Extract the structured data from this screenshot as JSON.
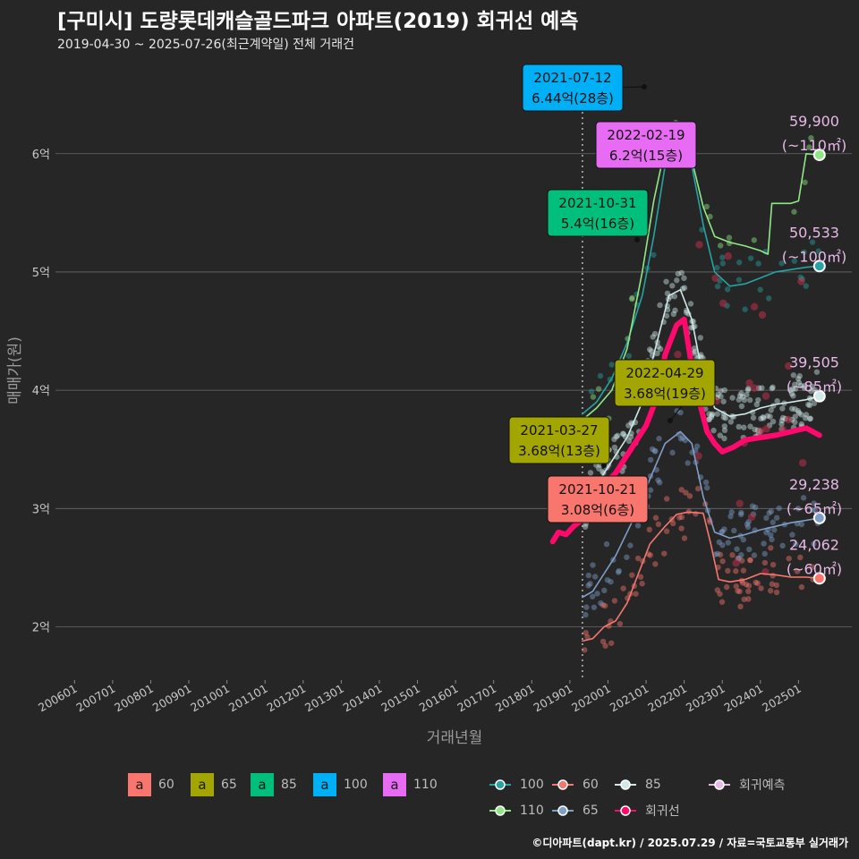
{
  "header": {
    "title": "[구미시] 도량롯데캐슬골드파크 아파트(2019) 회귀선 예측",
    "subtitle": "2019-04-30 ~ 2025-07-26(최근계약일) 전체 거래건"
  },
  "footer": {
    "credit": "©디아파트(dapt.kr) / 2025.07.29 / 자료=국토교통부 실거래가"
  },
  "chart_data": {
    "type": "line",
    "xlabel": "거래년월",
    "ylabel": "매매가(원)",
    "x_range": [
      2005.5,
      2026.4
    ],
    "y_range": [
      1.55,
      6.8
    ],
    "x_ticks": [
      {
        "label": "200601",
        "value": 2006.0
      },
      {
        "label": "200701",
        "value": 2007.0
      },
      {
        "label": "200801",
        "value": 2008.0
      },
      {
        "label": "200901",
        "value": 2009.0
      },
      {
        "label": "201001",
        "value": 2010.0
      },
      {
        "label": "201101",
        "value": 2011.0
      },
      {
        "label": "201201",
        "value": 2012.0
      },
      {
        "label": "201301",
        "value": 2013.0
      },
      {
        "label": "201401",
        "value": 2014.0
      },
      {
        "label": "201501",
        "value": 2015.0
      },
      {
        "label": "201601",
        "value": 2016.0
      },
      {
        "label": "201701",
        "value": 2017.0
      },
      {
        "label": "201801",
        "value": 2018.0
      },
      {
        "label": "201901",
        "value": 2019.0
      },
      {
        "label": "202001",
        "value": 2020.0
      },
      {
        "label": "202101",
        "value": 2021.0
      },
      {
        "label": "202201",
        "value": 2022.0
      },
      {
        "label": "202301",
        "value": 2023.0
      },
      {
        "label": "202401",
        "value": 2024.0
      },
      {
        "label": "202501",
        "value": 2025.0
      }
    ],
    "y_ticks": [
      {
        "label": "2억",
        "value": 2
      },
      {
        "label": "3억",
        "value": 3
      },
      {
        "label": "4억",
        "value": 4
      },
      {
        "label": "5억",
        "value": 5
      },
      {
        "label": "6억",
        "value": 6
      }
    ],
    "start_line": 2019.33,
    "series": [
      {
        "name": "60",
        "color": "#f8766d",
        "points": [
          [
            2019.33,
            1.88
          ],
          [
            2019.6,
            1.9
          ],
          [
            2019.9,
            2.0
          ],
          [
            2020.2,
            2.05
          ],
          [
            2020.5,
            2.2
          ],
          [
            2020.8,
            2.45
          ],
          [
            2021.1,
            2.7
          ],
          [
            2021.5,
            2.85
          ],
          [
            2021.8,
            2.95
          ],
          [
            2022.1,
            2.97
          ],
          [
            2022.5,
            2.96
          ],
          [
            2022.7,
            2.7
          ],
          [
            2022.9,
            2.4
          ],
          [
            2023.2,
            2.38
          ],
          [
            2023.6,
            2.4
          ],
          [
            2024.0,
            2.45
          ],
          [
            2024.4,
            2.44
          ],
          [
            2024.8,
            2.42
          ],
          [
            2025.2,
            2.42
          ],
          [
            2025.55,
            2.41
          ]
        ]
      },
      {
        "name": "65",
        "color": "#7f9fc9",
        "points": [
          [
            2019.33,
            2.25
          ],
          [
            2019.6,
            2.3
          ],
          [
            2019.9,
            2.45
          ],
          [
            2020.2,
            2.6
          ],
          [
            2020.5,
            2.8
          ],
          [
            2020.8,
            3.0
          ],
          [
            2021.1,
            3.25
          ],
          [
            2021.5,
            3.55
          ],
          [
            2021.9,
            3.65
          ],
          [
            2022.2,
            3.55
          ],
          [
            2022.5,
            3.1
          ],
          [
            2022.8,
            2.8
          ],
          [
            2023.2,
            2.75
          ],
          [
            2023.6,
            2.78
          ],
          [
            2024.0,
            2.82
          ],
          [
            2024.4,
            2.85
          ],
          [
            2024.8,
            2.88
          ],
          [
            2025.2,
            2.9
          ],
          [
            2025.55,
            2.92
          ]
        ]
      },
      {
        "name": "85",
        "color": "#cfe8e8",
        "points": [
          [
            2019.33,
            3.0
          ],
          [
            2019.7,
            3.2
          ],
          [
            2020.1,
            3.4
          ],
          [
            2020.5,
            3.6
          ],
          [
            2020.9,
            3.9
          ],
          [
            2021.2,
            4.3
          ],
          [
            2021.6,
            4.8
          ],
          [
            2021.9,
            4.85
          ],
          [
            2022.2,
            4.6
          ],
          [
            2022.5,
            4.1
          ],
          [
            2022.8,
            3.85
          ],
          [
            2023.2,
            3.78
          ],
          [
            2023.6,
            3.8
          ],
          [
            2024.0,
            3.85
          ],
          [
            2024.4,
            3.88
          ],
          [
            2024.8,
            3.9
          ],
          [
            2025.2,
            3.92
          ],
          [
            2025.55,
            3.95
          ]
        ]
      },
      {
        "name": "100",
        "color": "#27a3a3",
        "points": [
          [
            2019.33,
            3.8
          ],
          [
            2019.7,
            3.9
          ],
          [
            2020.1,
            4.1
          ],
          [
            2020.5,
            4.4
          ],
          [
            2020.9,
            4.8
          ],
          [
            2021.2,
            5.3
          ],
          [
            2021.6,
            6.1
          ],
          [
            2021.9,
            6.2
          ],
          [
            2022.2,
            5.9
          ],
          [
            2022.5,
            5.4
          ],
          [
            2022.8,
            5.0
          ],
          [
            2023.2,
            4.88
          ],
          [
            2023.6,
            4.9
          ],
          [
            2024.0,
            4.95
          ],
          [
            2024.4,
            5.0
          ],
          [
            2024.8,
            5.02
          ],
          [
            2025.2,
            5.04
          ],
          [
            2025.55,
            5.05
          ]
        ]
      },
      {
        "name": "110",
        "color": "#90e885",
        "points": [
          [
            2019.33,
            3.75
          ],
          [
            2019.7,
            3.85
          ],
          [
            2020.1,
            4.0
          ],
          [
            2020.5,
            4.35
          ],
          [
            2020.9,
            5.0
          ],
          [
            2021.2,
            5.6
          ],
          [
            2021.6,
            6.2
          ],
          [
            2021.9,
            6.2
          ],
          [
            2022.2,
            5.95
          ],
          [
            2022.5,
            5.55
          ],
          [
            2022.8,
            5.3
          ],
          [
            2023.2,
            5.25
          ],
          [
            2023.6,
            5.22
          ],
          [
            2024.0,
            5.18
          ],
          [
            2024.2,
            5.15
          ],
          [
            2024.3,
            5.58
          ],
          [
            2024.8,
            5.58
          ],
          [
            2025.0,
            5.6
          ],
          [
            2025.2,
            6.0
          ],
          [
            2025.55,
            5.99
          ]
        ]
      },
      {
        "name": "회귀선",
        "color": "#ff0a6c",
        "points": [
          [
            2018.55,
            2.72
          ],
          [
            2018.7,
            2.8
          ],
          [
            2018.9,
            2.78
          ],
          [
            2019.1,
            2.85
          ],
          [
            2019.3,
            2.9
          ],
          [
            2019.6,
            3.05
          ],
          [
            2019.9,
            3.2
          ],
          [
            2020.2,
            3.3
          ],
          [
            2020.5,
            3.45
          ],
          [
            2020.8,
            3.6
          ],
          [
            2021.0,
            3.7
          ],
          [
            2021.3,
            3.95
          ],
          [
            2021.5,
            4.3
          ],
          [
            2021.8,
            4.55
          ],
          [
            2022.0,
            4.6
          ],
          [
            2022.2,
            4.2
          ],
          [
            2022.4,
            3.9
          ],
          [
            2022.6,
            3.65
          ],
          [
            2022.8,
            3.55
          ],
          [
            2023.0,
            3.48
          ],
          [
            2023.3,
            3.52
          ],
          [
            2023.6,
            3.58
          ],
          [
            2024.0,
            3.6
          ],
          [
            2024.4,
            3.62
          ],
          [
            2024.8,
            3.65
          ],
          [
            2025.2,
            3.68
          ],
          [
            2025.55,
            3.62
          ]
        ]
      }
    ],
    "end_labels": [
      {
        "series": "110",
        "value_label": "59,900",
        "area_label": "(~110㎡)",
        "x": 2025.55,
        "y": 5.99
      },
      {
        "series": "100",
        "value_label": "50,533",
        "area_label": "(~100㎡)",
        "x": 2025.55,
        "y": 5.05
      },
      {
        "series": "85",
        "value_label": "39,505",
        "area_label": "(~85㎡)",
        "x": 2025.55,
        "y": 3.95
      },
      {
        "series": "65",
        "value_label": "29,238",
        "area_label": "(~65㎡)",
        "x": 2025.55,
        "y": 2.92
      },
      {
        "series": "60",
        "value_label": "24,062",
        "area_label": "(~60㎡)",
        "x": 2025.55,
        "y": 2.41
      }
    ],
    "annotations": [
      {
        "series": "100",
        "date": "2021-07-12",
        "price": "6.44억(28층)",
        "x": 2021.53,
        "y": 6.44,
        "fill": "#00b0f6"
      },
      {
        "series": "110",
        "date": "2022-02-19",
        "price": "6.2억(15층)",
        "x": 2022.13,
        "y": 6.2,
        "fill": "#e76bf3"
      },
      {
        "series": "85",
        "date": "2021-10-31",
        "price": "5.4억(16층)",
        "x": 2021.83,
        "y": 5.4,
        "fill": "#00bf7d"
      },
      {
        "series": "65",
        "date": "2022-04-29",
        "price": "3.68억(19층)",
        "x": 2022.32,
        "y": 3.68,
        "fill": "#a3a500"
      },
      {
        "series": "65",
        "date": "2021-03-27",
        "price": "3.68억(13층)",
        "x": 2021.23,
        "y": 3.68,
        "fill": "#a3a500"
      },
      {
        "series": "60",
        "date": "2021-10-21",
        "price": "3.08억(6층)",
        "x": 2021.8,
        "y": 3.08,
        "fill": "#f8766d"
      }
    ],
    "legend_area": [
      {
        "key": "a",
        "label": "60",
        "color": "#f8766d"
      },
      {
        "key": "a",
        "label": "65",
        "color": "#a3a500"
      },
      {
        "key": "a",
        "label": "85",
        "color": "#00bf7d"
      },
      {
        "key": "a",
        "label": "100",
        "color": "#00b0f6"
      },
      {
        "key": "a",
        "label": "110",
        "color": "#e76bf3"
      }
    ],
    "legend_lines": [
      {
        "label": "100",
        "color": "#27a3a3"
      },
      {
        "label": "60",
        "color": "#f8766d"
      },
      {
        "label": "85",
        "color": "#cfe8e8"
      },
      {
        "label": "회귀예측",
        "color": "#e8b8e8"
      },
      {
        "label": "110",
        "color": "#90e885"
      },
      {
        "label": "65",
        "color": "#7f9fc9"
      },
      {
        "label": "회귀선",
        "color": "#ff0a6c"
      }
    ]
  }
}
